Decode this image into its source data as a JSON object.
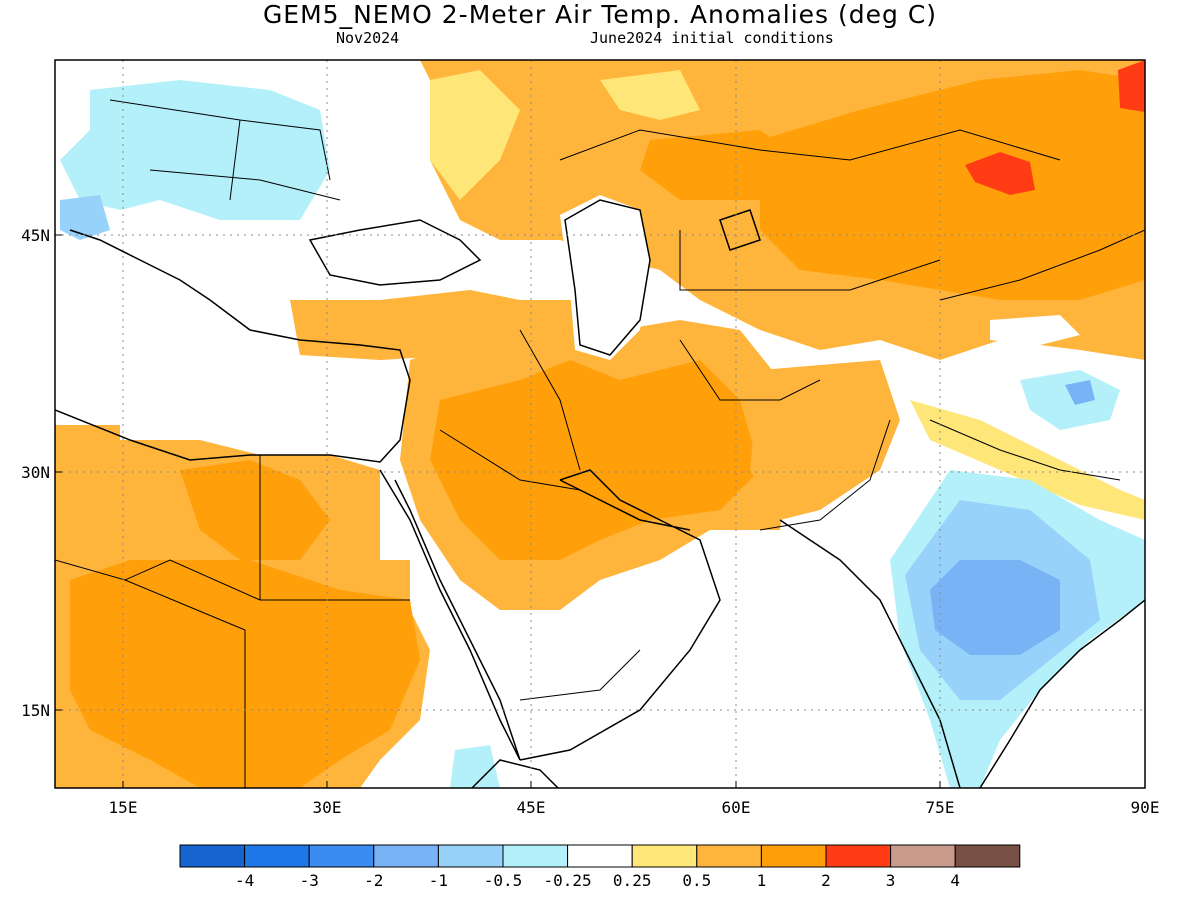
{
  "title": "GEM5_NEMO 2-Meter Air Temp. Anomalies (deg C)",
  "subtitle_left": "Nov2024",
  "subtitle_right": "June2024 initial conditions",
  "lat_labels": [
    {
      "value": 45,
      "label": "45N"
    },
    {
      "value": 30,
      "label": "30N"
    },
    {
      "value": 15,
      "label": "15N"
    }
  ],
  "lon_labels": [
    {
      "value": 15,
      "label": "15E"
    },
    {
      "value": 30,
      "label": "30E"
    },
    {
      "value": 45,
      "label": "45E"
    },
    {
      "value": 60,
      "label": "60E"
    },
    {
      "value": 75,
      "label": "75E"
    },
    {
      "value": 90,
      "label": "90E"
    }
  ],
  "extent": {
    "lon_min": 10,
    "lon_max": 90,
    "lat_min": 10,
    "lat_max": 56
  },
  "colorbar": {
    "colors": [
      "#1664d0",
      "#1f78e8",
      "#3b8cf0",
      "#78b4f5",
      "#96d2fa",
      "#b4f0fa",
      "#ffffff",
      "#ffe678",
      "#ffb43c",
      "#ffa00a",
      "#ff3c14",
      "#c89b8c",
      "#785046"
    ],
    "labels": [
      "-4",
      "-3",
      "-2",
      "-1",
      "-0.5",
      "-0.25",
      "0.25",
      "0.5",
      "1",
      "2",
      "3",
      "4"
    ]
  }
}
